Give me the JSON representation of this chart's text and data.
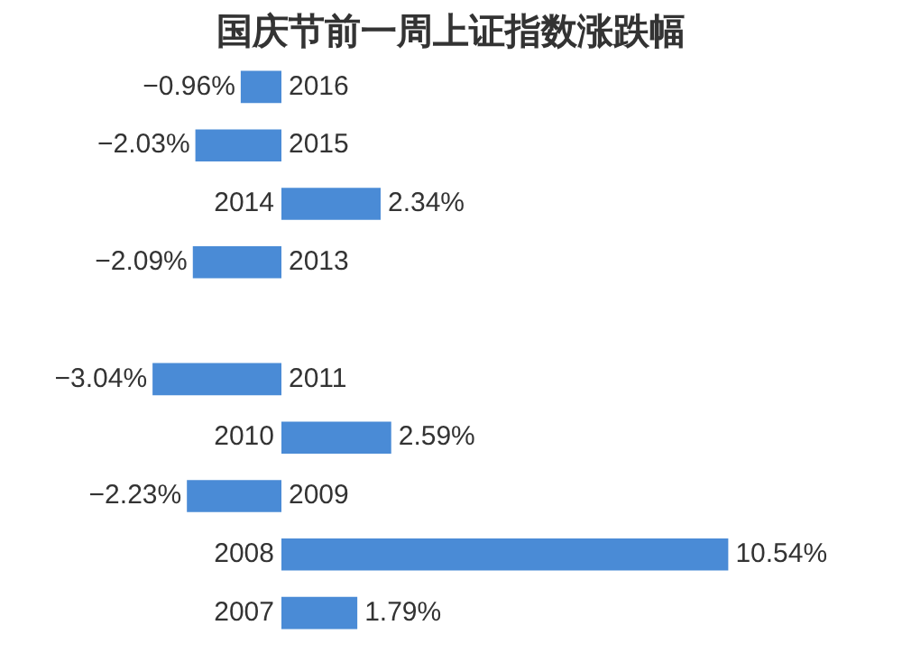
{
  "chart_data": {
    "type": "bar",
    "orientation": "horizontal",
    "title": "国庆节前一周上证指数涨跌幅",
    "categories": [
      "2016",
      "2015",
      "2014",
      "2013",
      null,
      "2011",
      "2010",
      "2009",
      "2008",
      "2007"
    ],
    "values": [
      -0.96,
      -2.03,
      2.34,
      -2.09,
      null,
      -3.04,
      2.59,
      -2.23,
      10.54,
      1.79
    ],
    "value_labels": [
      "−0.96%",
      "−2.03%",
      "2.34%",
      "−2.09%",
      null,
      "−3.04%",
      "2.59%",
      "−2.23%",
      "10.54%",
      "1.79%"
    ],
    "color": "#4a8bd6"
  }
}
